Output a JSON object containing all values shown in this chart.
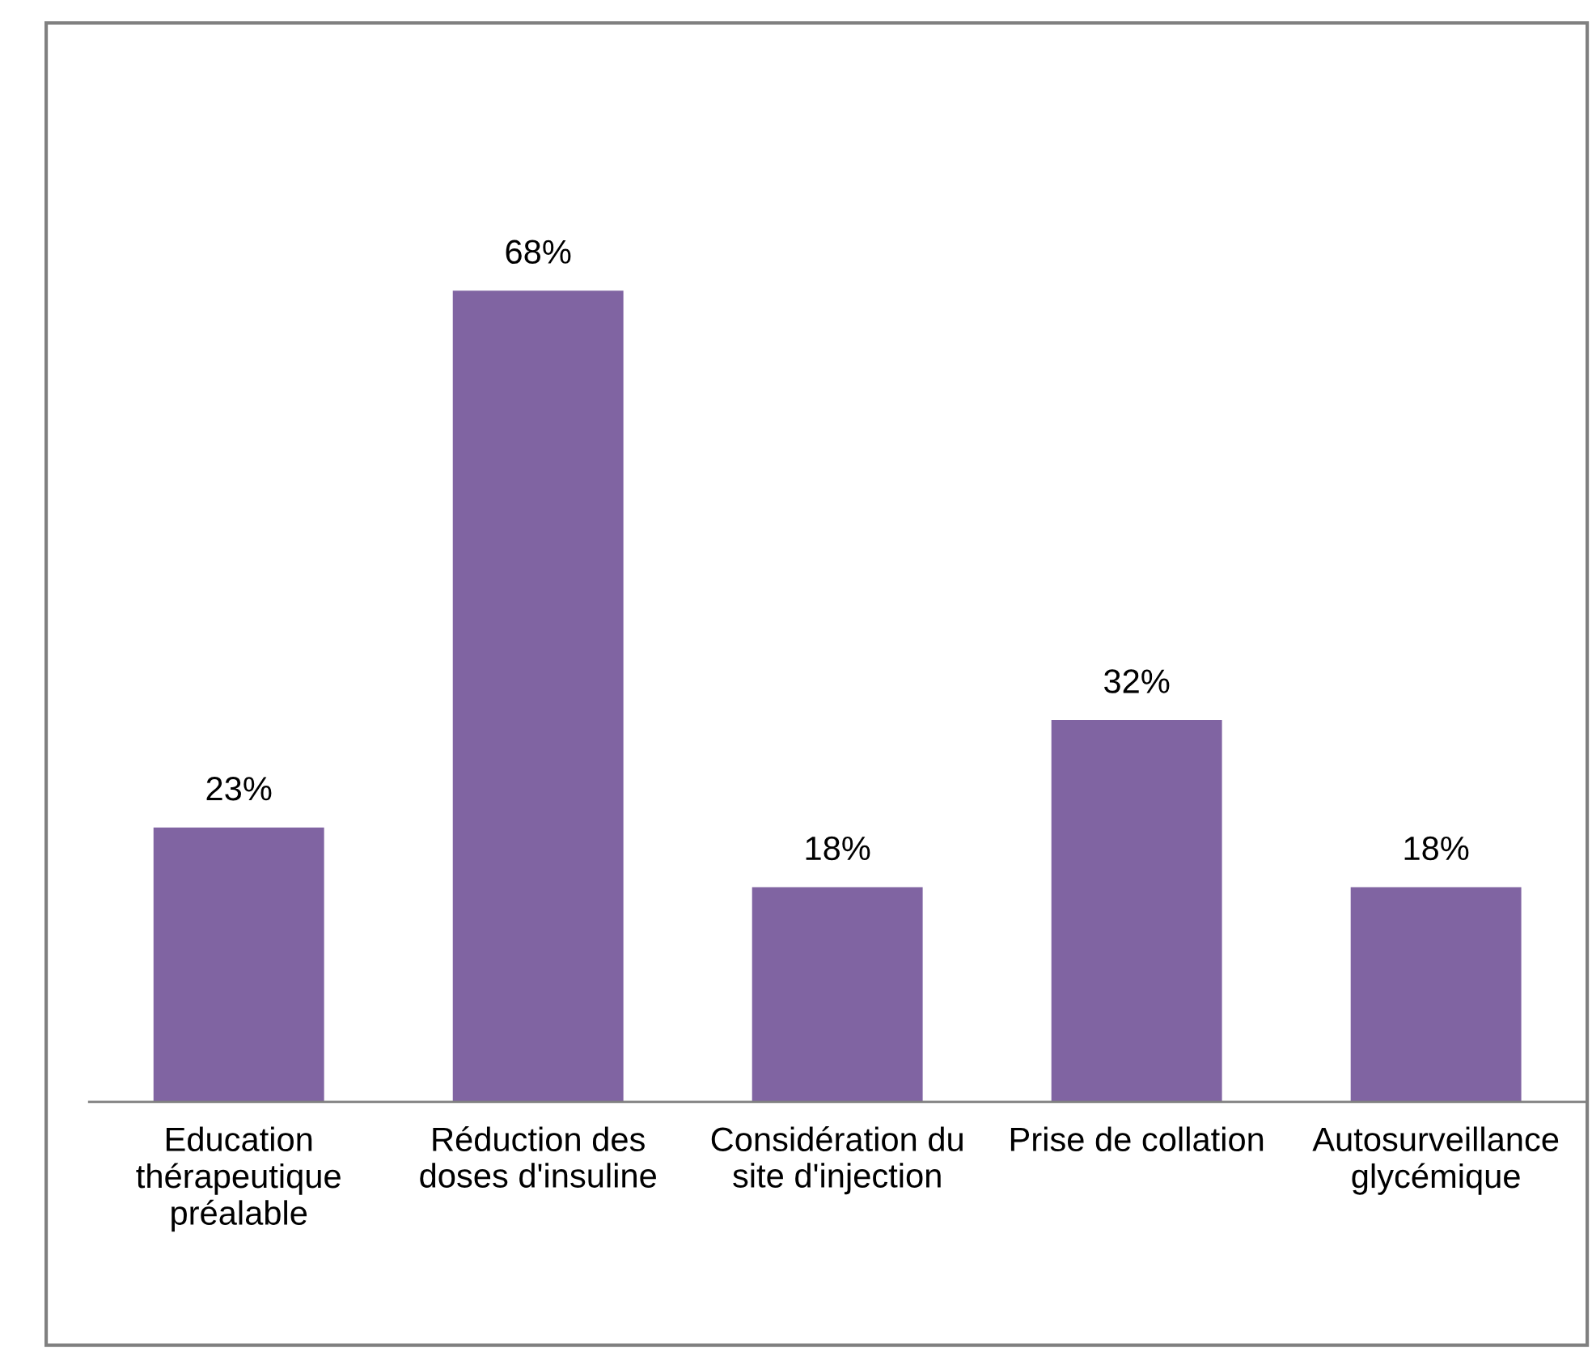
{
  "chart_data": {
    "type": "bar",
    "categories": [
      "Education\nthérapeutique\npréalable",
      "Réduction des\ndoses d'insuline",
      "Considération du\nsite d'injection",
      "Prise de collation",
      "Autosurveillance\nglycémique"
    ],
    "values": [
      23,
      68,
      18,
      32,
      18
    ],
    "value_labels": [
      "23%",
      "68%",
      "18%",
      "32%",
      "18%"
    ],
    "color": "#8064a2",
    "grid": false,
    "legend": false
  }
}
